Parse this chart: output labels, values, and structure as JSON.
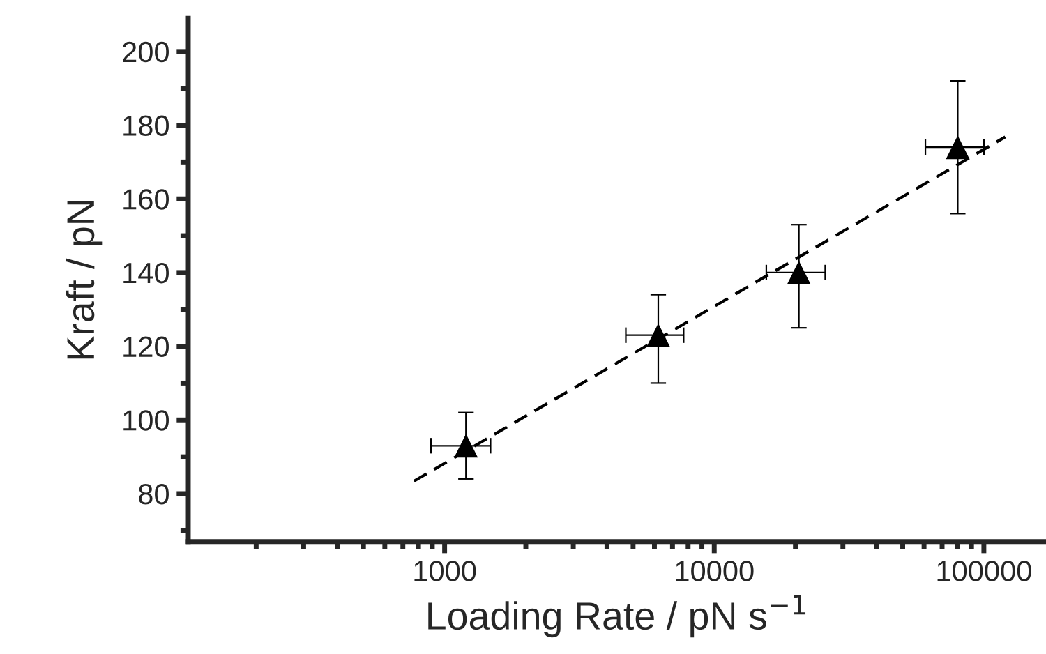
{
  "chart_data": {
    "type": "scatter",
    "xlabel": "Loading Rate / pN s$^{−1}$",
    "ylabel": "Kraft / pN",
    "log": "x",
    "xlim": [
      112,
      170000
    ],
    "xticks": [
      1000,
      10000,
      100000
    ],
    "ylim": [
      67,
      209
    ],
    "yticks": [
      80,
      100,
      120,
      140,
      160,
      180,
      200
    ],
    "grid": false,
    "series": [
      {
        "color": "#000000",
        "marker": "triangle",
        "x": [
          1200,
          6200,
          20600,
          80000
        ],
        "values": [
          93,
          123,
          140,
          174
        ],
        "errors": [
          [
            84,
            102
          ],
          [
            110,
            134
          ],
          [
            125,
            153
          ],
          [
            156,
            192
          ]
        ],
        "xerrors": [
          [
            890,
            1480
          ],
          [
            4700,
            7700
          ],
          [
            15600,
            25800
          ],
          [
            60700,
            100000
          ]
        ]
      },
      {
        "type": "line",
        "color": "#000000",
        "line_style": "dashed",
        "x": [
          770,
          120000
        ],
        "values": [
          83.4,
          176.8
        ]
      }
    ]
  }
}
